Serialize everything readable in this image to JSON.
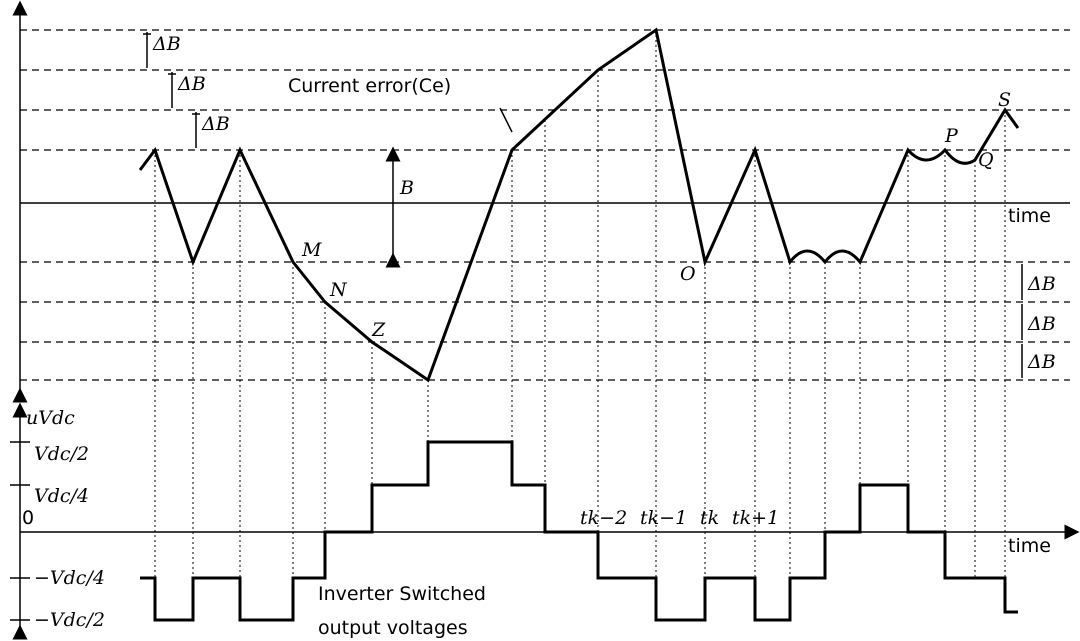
{
  "labels": {
    "delta_b_top": [
      "ΔB",
      "ΔB",
      "ΔB"
    ],
    "delta_b_bottom": [
      "ΔB",
      "ΔB",
      "ΔB"
    ],
    "current_error": "Current error(Ce)",
    "band": "B",
    "time_top": "time",
    "time_bottom": "time",
    "points": [
      "M",
      "N",
      "Z",
      "O",
      "P",
      "Q",
      "S"
    ],
    "voltage_axis": "uVdc",
    "levels": [
      "Vdc/2",
      "Vdc/4",
      "0",
      "−Vdc/4",
      "−Vdc/2"
    ],
    "instants": [
      "tk−2",
      "tk−1",
      "tk",
      "tk+1"
    ],
    "caption": [
      "Inverter Switched",
      "output voltages"
    ]
  }
}
